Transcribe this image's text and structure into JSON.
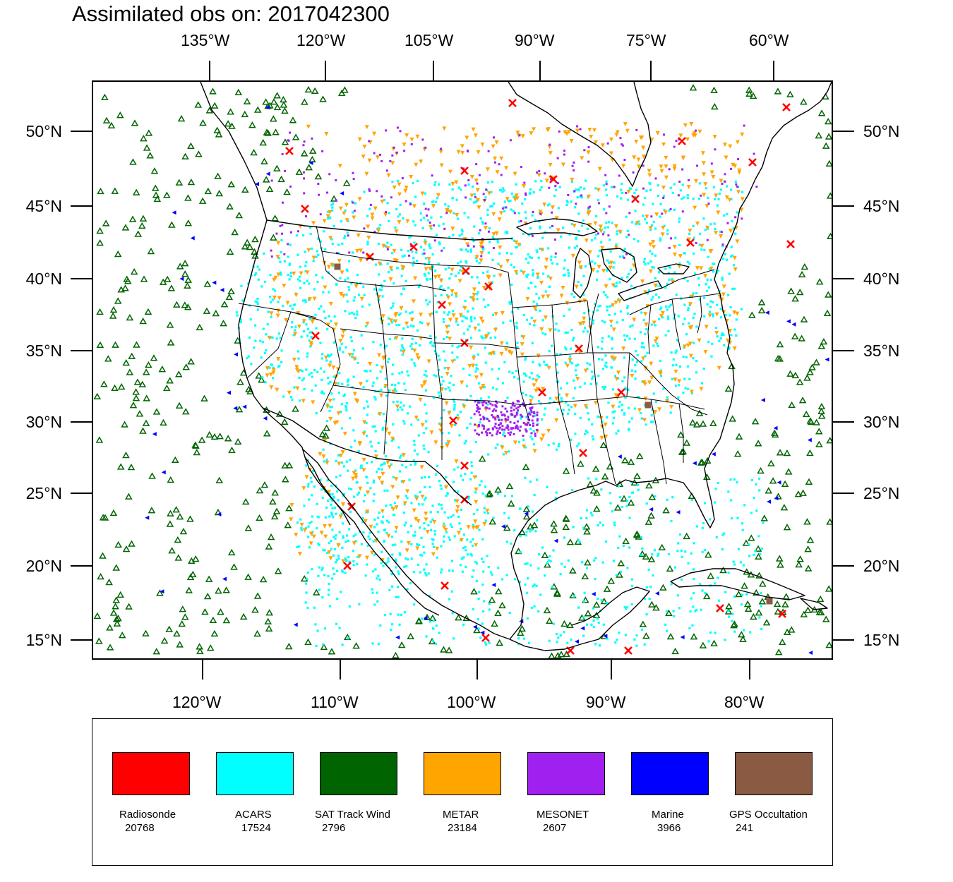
{
  "title": "Assimilated obs on: 2017042300",
  "top_lon_labels": [
    "135°W",
    "120°W",
    "105°W",
    "90°W",
    "75°W",
    "60°W"
  ],
  "bottom_lon_labels": [
    "120°W",
    "110°W",
    "100°W",
    "90°W",
    "80°W"
  ],
  "lat_labels": [
    "50°N",
    "45°N",
    "40°N",
    "35°N",
    "30°N",
    "25°N",
    "20°N",
    "15°N"
  ],
  "colors": {
    "radiosonde": "#ff0000",
    "acars": "#00ffff",
    "sat_track_wind": "#006400",
    "metar": "#ffa500",
    "mesonet": "#a020f0",
    "marine": "#0000ff",
    "gps": "#8b5a42"
  },
  "legend": [
    {
      "name": "Radiosonde",
      "count": "20768",
      "color": "#ff0000"
    },
    {
      "name": "ACARS",
      "count": "17524",
      "color": "#00ffff"
    },
    {
      "name": "SAT Track Wind",
      "count": "2796",
      "color": "#006400"
    },
    {
      "name": "METAR",
      "count": "23184",
      "color": "#ffa500"
    },
    {
      "name": "MESONET",
      "count": "2607",
      "color": "#a020f0"
    },
    {
      "name": "Marine",
      "count": "3966",
      "color": "#0000ff"
    },
    {
      "name": "GPS Occultation",
      "count": "241",
      "color": "#8b5a42"
    }
  ]
}
